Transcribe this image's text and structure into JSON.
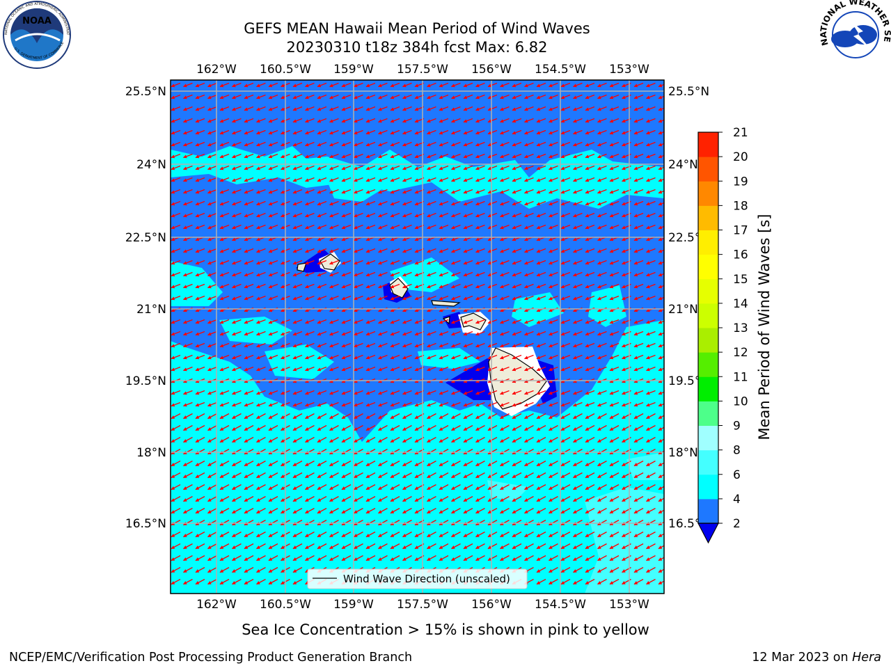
{
  "title": {
    "line1": "GEFS MEAN Hawaii Mean Period of Wind Waves",
    "line2": "20230310 t18z 384h fcst   Max: 6.82"
  },
  "logos": {
    "noaa": {
      "icon": "noaa-logo-icon",
      "text": "NOAA",
      "ring_text": "NATIONAL OCEANIC AND ATMOSPHERIC ADMINISTRATION",
      "ring_text_bottom": "U.S. DEPARTMENT OF COMMERCE",
      "colors": {
        "navy": "#1f3a7a",
        "blue": "#1f77c8"
      }
    },
    "nws": {
      "icon": "nws-logo-icon",
      "ring_text": "NATIONAL WEATHER SERVICE",
      "colors": {
        "red": "#e02020",
        "blue": "#1446b8"
      }
    }
  },
  "map": {
    "lon_labels": [
      "162°W",
      "160.5°W",
      "159°W",
      "157.5°W",
      "156°W",
      "154.5°W",
      "153°W"
    ],
    "lat_labels": [
      "25.5°N",
      "24°N",
      "22.5°N",
      "21°N",
      "19.5°N",
      "18°N",
      "16.5°N"
    ],
    "colors": {
      "ocean_long": "#00ffff",
      "ocean_short": "#1e78ff",
      "very_short": "#0000ee",
      "land": "#efedda",
      "gridline": "#b0b0b0",
      "arrow": "#ff0000"
    }
  },
  "legend": {
    "label": "Wind Wave Direction (unscaled)"
  },
  "colorbar": {
    "label": "Mean Period of Wind Waves [s]",
    "ticks": [
      "2",
      "4",
      "6",
      "8",
      "9",
      "10",
      "11",
      "12",
      "13",
      "14",
      "15",
      "16",
      "17",
      "18",
      "19",
      "20",
      "21"
    ],
    "colors": [
      "#1e78ff",
      "#00ffff",
      "#44ffff",
      "#a0ffff",
      "#4dff8a",
      "#00ee00",
      "#55ee00",
      "#aaee00",
      "#ccff00",
      "#e6ff00",
      "#ffff00",
      "#ffee00",
      "#ffbb00",
      "#ff8800",
      "#ff5500",
      "#ff2200"
    ],
    "under_color": "#0000ee"
  },
  "footer": {
    "subcaption": "Sea Ice Concentration > 15% is shown in pink to yellow",
    "left": "NCEP/EMC/Verification Post Processing Product Generation Branch",
    "right_prefix": "12 Mar 2023 on ",
    "right_host": "Hera"
  }
}
